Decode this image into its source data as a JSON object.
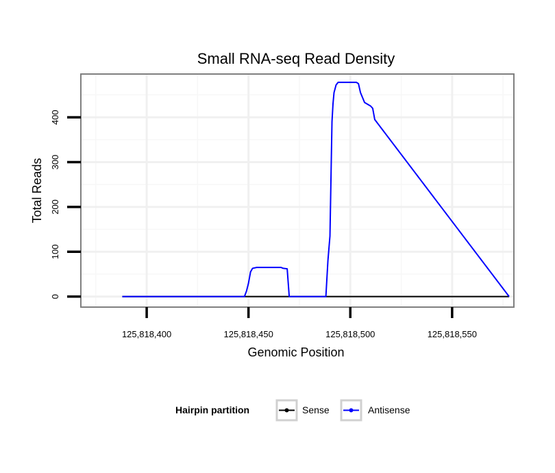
{
  "chart_data": {
    "type": "line",
    "title": "Small RNA-seq Read Density",
    "xlabel": "Genomic Position",
    "ylabel": "Total Reads",
    "xlim": [
      125818368,
      125818580
    ],
    "ylim": [
      -22,
      495
    ],
    "xticks": [
      125818400,
      125818450,
      125818500,
      125818550
    ],
    "xtick_labels": [
      "125,818,400",
      "125,818,450",
      "125,818,500",
      "125,818,550"
    ],
    "yticks": [
      0,
      100,
      200,
      300,
      400
    ],
    "ytick_labels": [
      "0",
      "100",
      "200",
      "300",
      "400"
    ],
    "grid": true,
    "legend": {
      "title": "Hairpin partition",
      "position": "bottom",
      "entries": [
        {
          "name": "Sense",
          "color": "#000000"
        },
        {
          "name": "Antisense",
          "color": "#0000ff"
        }
      ]
    },
    "series": [
      {
        "name": "Sense",
        "color": "#000000",
        "x": [
          125818388,
          125818578
        ],
        "y": [
          0,
          0
        ]
      },
      {
        "name": "Antisense",
        "color": "#0000ff",
        "x": [
          125818388,
          125818448,
          125818449,
          125818450,
          125818451,
          125818452,
          125818454,
          125818466,
          125818467,
          125818469,
          125818470,
          125818488,
          125818489,
          125818490,
          125818491,
          125818491.5,
          125818492,
          125818493,
          125818494,
          125818495,
          125818500,
          125818503,
          125818504,
          125818505,
          125818507,
          125818510,
          125818511,
          125818512,
          125818578
        ],
        "y": [
          0,
          0,
          12,
          30,
          55,
          63,
          65,
          65,
          63,
          62,
          0,
          0,
          80,
          135,
          390,
          430,
          455,
          472,
          478,
          478,
          478,
          478,
          475,
          455,
          433,
          425,
          420,
          395,
          0
        ]
      }
    ]
  }
}
